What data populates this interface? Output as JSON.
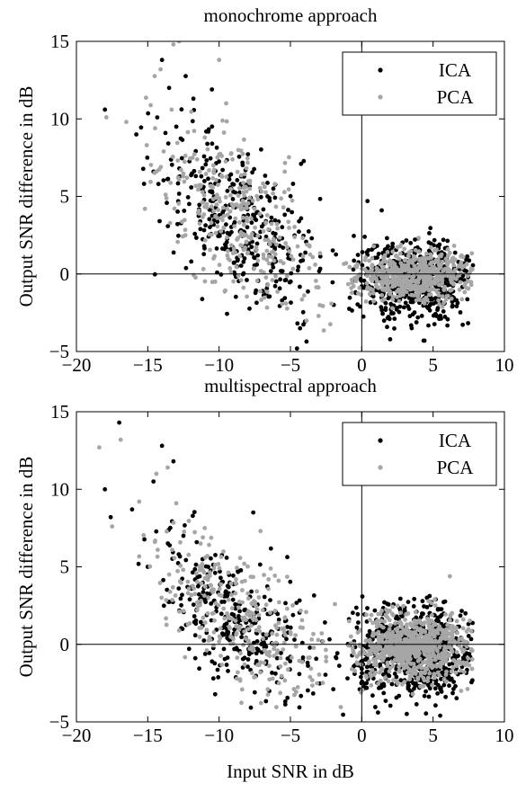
{
  "chart_data": [
    {
      "type": "scatter",
      "title": "monochrome approach",
      "xlabel": "",
      "ylabel": "Output SNR difference in dB",
      "xlim": [
        -20,
        10
      ],
      "ylim": [
        -5,
        15
      ],
      "xticks": [
        -20,
        -15,
        -10,
        -5,
        0,
        5,
        10
      ],
      "yticks": [
        -5,
        0,
        5,
        10,
        15
      ],
      "reference_lines": {
        "x": 0,
        "y": 0
      },
      "legend": {
        "position": "top-right"
      },
      "series": [
        {
          "name": "ICA",
          "color": "#000000",
          "clusters": [
            {
              "x_mean": -8.5,
              "x_sd": 3.0,
              "x_min": -16.5,
              "x_max": -1.5,
              "y_base": 3.0,
              "y_slope": -0.6,
              "y_sd": 2.4,
              "count": 360
            },
            {
              "x_mean": 3.8,
              "x_sd": 2.1,
              "x_min": -1.0,
              "x_max": 7.8,
              "y_base": -0.4,
              "y_slope": 0.0,
              "y_sd": 1.3,
              "count": 620
            }
          ],
          "points": [
            {
              "x": -18.0,
              "y": 10.6
            },
            {
              "x": -14.0,
              "y": 13.8
            },
            {
              "x": -13.5,
              "y": 12.0
            },
            {
              "x": -10.5,
              "y": 11.9
            },
            {
              "x": -11.8,
              "y": 11.3
            },
            {
              "x": 0.4,
              "y": 4.7
            },
            {
              "x": 4.4,
              "y": -4.3
            },
            {
              "x": 3.5,
              "y": -3.5
            },
            {
              "x": -14.6,
              "y": 6.6
            },
            {
              "x": -15.8,
              "y": 9.0
            },
            {
              "x": 1.4,
              "y": 4.1
            },
            {
              "x": -13.0,
              "y": 9.5
            }
          ]
        },
        {
          "name": "PCA",
          "color": "#a6a6a6",
          "clusters": [
            {
              "x_mean": -8.3,
              "x_sd": 3.0,
              "x_min": -16.5,
              "x_max": -1.5,
              "y_base": 3.2,
              "y_slope": -0.6,
              "y_sd": 2.4,
              "count": 320
            },
            {
              "x_mean": 3.6,
              "x_sd": 2.1,
              "x_min": -1.5,
              "x_max": 7.8,
              "y_base": -0.1,
              "y_slope": 0.0,
              "y_sd": 0.8,
              "count": 520
            }
          ],
          "points": [
            {
              "x": -13.2,
              "y": 14.8
            },
            {
              "x": -12.8,
              "y": 15.0
            },
            {
              "x": -10.0,
              "y": 13.8
            },
            {
              "x": -17.9,
              "y": 10.1
            },
            {
              "x": -16.5,
              "y": 9.8
            },
            {
              "x": -15.2,
              "y": 4.2
            },
            {
              "x": -14.1,
              "y": 13.2
            },
            {
              "x": -9.5,
              "y": 11.0
            },
            {
              "x": -11.0,
              "y": 8.8
            }
          ]
        }
      ]
    },
    {
      "type": "scatter",
      "title": "multispectral approach",
      "xlabel": "Input SNR in dB",
      "ylabel": "Output SNR difference in dB",
      "xlim": [
        -20,
        10
      ],
      "ylim": [
        -5,
        15
      ],
      "xticks": [
        -20,
        -15,
        -10,
        -5,
        0,
        5,
        10
      ],
      "yticks": [
        -5,
        0,
        5,
        10,
        15
      ],
      "reference_lines": {
        "x": 0,
        "y": 0
      },
      "legend": {
        "position": "top-right"
      },
      "series": [
        {
          "name": "ICA",
          "color": "#000000",
          "clusters": [
            {
              "x_mean": -8.5,
              "x_sd": 3.0,
              "x_min": -16.0,
              "x_max": -1.0,
              "y_base": 1.4,
              "y_slope": -0.55,
              "y_sd": 2.0,
              "count": 320
            },
            {
              "x_mean": 3.8,
              "x_sd": 2.2,
              "x_min": -1.0,
              "x_max": 7.8,
              "y_base": -0.5,
              "y_slope": 0.0,
              "y_sd": 1.4,
              "count": 700
            }
          ],
          "points": [
            {
              "x": -17.0,
              "y": 14.3
            },
            {
              "x": -18.0,
              "y": 10.0
            },
            {
              "x": -17.6,
              "y": 8.2
            },
            {
              "x": -14.0,
              "y": 12.8
            },
            {
              "x": -13.2,
              "y": 11.8
            },
            {
              "x": -15.0,
              "y": 5.0
            },
            {
              "x": -14.6,
              "y": 10.5
            },
            {
              "x": -16.1,
              "y": 8.7
            },
            {
              "x": -12.5,
              "y": 7.0
            },
            {
              "x": -7.6,
              "y": 8.5
            },
            {
              "x": 5.5,
              "y": -4.6
            }
          ]
        },
        {
          "name": "PCA",
          "color": "#a6a6a6",
          "clusters": [
            {
              "x_mean": -8.3,
              "x_sd": 3.0,
              "x_min": -16.0,
              "x_max": -1.0,
              "y_base": 1.6,
              "y_slope": -0.55,
              "y_sd": 2.0,
              "count": 300
            },
            {
              "x_mean": 3.6,
              "x_sd": 2.0,
              "x_min": -1.0,
              "x_max": 7.8,
              "y_base": -0.2,
              "y_slope": 0.0,
              "y_sd": 1.1,
              "count": 700
            }
          ],
          "points": [
            {
              "x": -18.4,
              "y": 12.7
            },
            {
              "x": -16.9,
              "y": 13.2
            },
            {
              "x": -13.6,
              "y": 11.4
            },
            {
              "x": -15.6,
              "y": 9.2
            },
            {
              "x": -14.4,
              "y": 11.0
            },
            {
              "x": -17.5,
              "y": 7.6
            },
            {
              "x": -13.0,
              "y": 9.1
            },
            {
              "x": -7.1,
              "y": 7.3
            }
          ]
        }
      ]
    }
  ]
}
